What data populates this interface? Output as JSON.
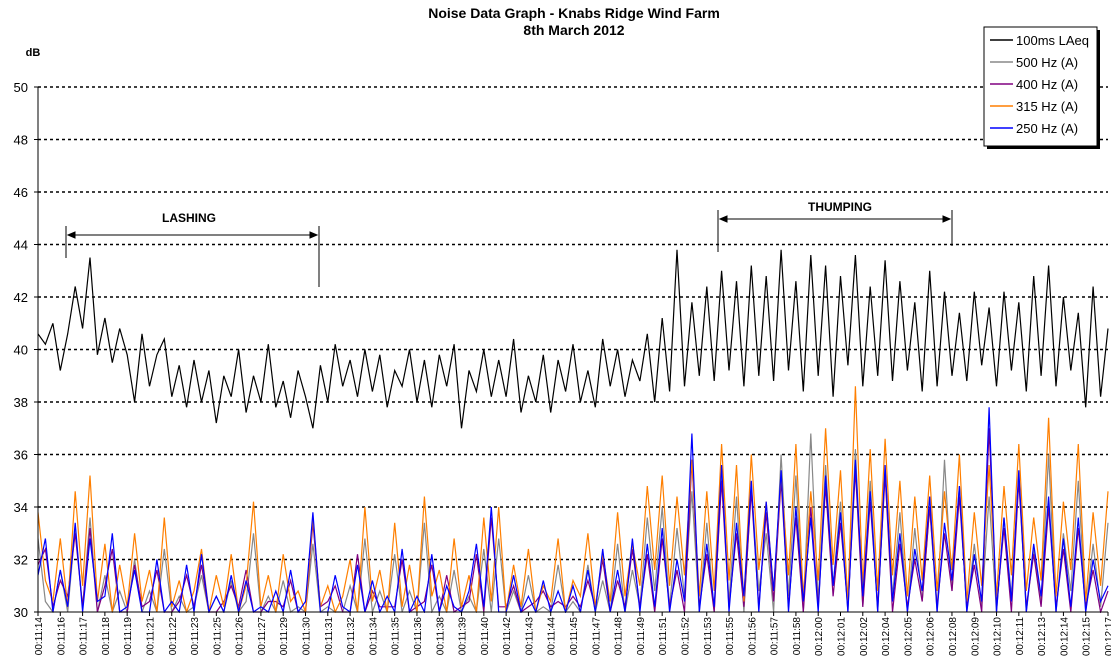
{
  "chart_data": {
    "type": "line",
    "title": "Noise Data Graph - Knabs Ridge Wind Farm",
    "subtitle": "8th March 2012",
    "y_label": "dB",
    "annotations": [
      {
        "text": "LASHING"
      },
      {
        "text": "THUMPING"
      }
    ],
    "categories": [
      "00:11:14",
      null,
      null,
      "00:11:16",
      null,
      null,
      "00:11:17",
      null,
      null,
      "00:11:18",
      null,
      null,
      "00:11:19",
      null,
      null,
      "00:11:21",
      null,
      null,
      "00:11:22",
      null,
      null,
      "00:11:23",
      null,
      null,
      "00:11:25",
      null,
      null,
      "00:11:26",
      null,
      null,
      "00:11:27",
      null,
      null,
      "00:11:29",
      null,
      null,
      "00:11:30",
      null,
      null,
      "00:11:31",
      null,
      null,
      "00:11:32",
      null,
      null,
      "00:11:34",
      null,
      null,
      "00:11:35",
      null,
      null,
      "00:11:36",
      null,
      null,
      "00:11:38",
      null,
      null,
      "00:11:39",
      null,
      null,
      "00:11:40",
      null,
      null,
      "00:11:42",
      null,
      null,
      "00:11:43",
      null,
      null,
      "00:11:44",
      null,
      null,
      "00:11:45",
      null,
      null,
      "00:11:47",
      null,
      null,
      "00:11:48",
      null,
      null,
      "00:11:49",
      null,
      null,
      "00:11:51",
      null,
      null,
      "00:11:52",
      null,
      null,
      "00:11:53",
      null,
      null,
      "00:11:55",
      null,
      null,
      "00:11:56",
      null,
      null,
      "00:11:57",
      null,
      null,
      "00:11:58",
      null,
      null,
      "00:12:00",
      null,
      null,
      "00:12:01",
      null,
      null,
      "00:12:02",
      null,
      null,
      "00:12:04",
      null,
      null,
      "00:12:05",
      null,
      null,
      "00:12:06",
      null,
      null,
      "00:12:08",
      null,
      null,
      "00:12:09",
      null,
      null,
      "00:12:10",
      null,
      null,
      "00:12:11",
      null,
      null,
      "00:12:13",
      null,
      null,
      "00:12:14",
      null,
      null,
      "00:12:15",
      null,
      null,
      "00:12:17"
    ],
    "series": [
      {
        "name": "100ms LAeq",
        "color": "#000000",
        "values": [
          40.6,
          40.2,
          41.0,
          39.2,
          40.6,
          42.4,
          40.8,
          43.5,
          39.8,
          41.2,
          39.5,
          40.8,
          39.8,
          38.0,
          40.6,
          38.6,
          39.8,
          40.4,
          38.2,
          39.4,
          37.8,
          39.6,
          38.0,
          39.2,
          37.2,
          39.0,
          38.2,
          40.0,
          37.6,
          39.0,
          38.0,
          40.2,
          37.8,
          38.8,
          37.4,
          39.2,
          38.2,
          37.0,
          39.4,
          38.0,
          40.2,
          38.6,
          39.6,
          38.2,
          40.0,
          38.4,
          39.8,
          37.8,
          39.2,
          38.6,
          40.0,
          38.0,
          39.6,
          37.8,
          39.8,
          38.6,
          40.2,
          37.0,
          39.2,
          38.4,
          40.0,
          38.2,
          39.6,
          38.2,
          40.4,
          37.6,
          39.0,
          38.0,
          39.8,
          37.6,
          39.6,
          38.4,
          40.2,
          38.0,
          39.2,
          37.8,
          40.4,
          38.6,
          40.0,
          38.2,
          39.6,
          38.8,
          40.6,
          38.0,
          41.2,
          38.4,
          43.8,
          38.6,
          41.8,
          39.0,
          42.4,
          38.8,
          43.0,
          39.2,
          42.6,
          38.6,
          43.2,
          39.0,
          42.8,
          38.8,
          43.8,
          39.2,
          42.6,
          38.4,
          43.6,
          39.0,
          43.2,
          38.2,
          42.8,
          39.4,
          43.6,
          38.6,
          42.4,
          39.0,
          43.4,
          38.8,
          42.6,
          39.2,
          41.8,
          38.4,
          43.0,
          38.6,
          42.2,
          39.0,
          41.4,
          38.8,
          42.2,
          39.4,
          41.6,
          38.6,
          42.2,
          39.2,
          41.8,
          38.4,
          42.8,
          39.0,
          43.2,
          38.6,
          42.0,
          39.2,
          41.4,
          37.8,
          42.4,
          38.2,
          40.8
        ]
      },
      {
        "name": "500 Hz (A)",
        "color": "#888888",
        "values": [
          32.8,
          30.4,
          30.0,
          31.6,
          30.0,
          33.2,
          30.2,
          33.6,
          30.0,
          31.4,
          30.0,
          30.8,
          30.0,
          32.0,
          30.0,
          30.8,
          30.0,
          32.4,
          30.0,
          30.6,
          30.0,
          30.2,
          31.4,
          30.0,
          30.6,
          30.0,
          31.2,
          30.0,
          30.4,
          33.0,
          30.0,
          30.6,
          30.0,
          31.2,
          30.0,
          30.2,
          30.0,
          32.6,
          30.0,
          30.2,
          30.0,
          30.0,
          31.0,
          30.0,
          32.8,
          30.0,
          30.8,
          30.0,
          32.2,
          30.0,
          30.8,
          30.0,
          33.4,
          30.0,
          30.6,
          30.0,
          31.6,
          30.0,
          30.6,
          30.0,
          32.4,
          30.0,
          32.8,
          30.0,
          30.8,
          30.0,
          31.4,
          30.0,
          30.2,
          30.0,
          31.8,
          30.0,
          30.4,
          30.0,
          31.8,
          30.0,
          31.2,
          30.0,
          32.6,
          30.0,
          31.6,
          30.2,
          33.6,
          30.8,
          34.0,
          30.2,
          33.2,
          30.6,
          34.6,
          30.0,
          33.4,
          30.0,
          35.2,
          30.4,
          34.4,
          30.0,
          34.8,
          30.8,
          33.0,
          30.0,
          36.0,
          30.6,
          35.2,
          30.0,
          36.8,
          30.4,
          35.6,
          31.0,
          34.2,
          30.0,
          36.2,
          30.2,
          35.0,
          30.0,
          35.4,
          30.6,
          33.8,
          30.0,
          33.2,
          30.4,
          34.0,
          30.0,
          35.8,
          30.8,
          34.8,
          30.0,
          32.6,
          30.2,
          34.4,
          30.0,
          33.6,
          30.6,
          35.2,
          30.0,
          32.4,
          30.4,
          36.0,
          30.0,
          33.0,
          30.8,
          35.0,
          30.0,
          32.6,
          30.2,
          33.4
        ]
      },
      {
        "name": "400 Hz (A)",
        "color": "#800080",
        "values": [
          31.8,
          32.4,
          30.2,
          31.2,
          30.6,
          33.0,
          30.2,
          33.2,
          30.0,
          31.0,
          32.4,
          30.0,
          30.0,
          31.8,
          30.2,
          30.4,
          31.6,
          30.0,
          30.0,
          30.4,
          31.4,
          30.2,
          31.8,
          30.0,
          30.0,
          30.4,
          31.0,
          30.2,
          31.6,
          30.0,
          30.0,
          30.4,
          30.4,
          30.2,
          31.2,
          30.0,
          30.0,
          33.4,
          30.2,
          30.4,
          31.0,
          30.0,
          30.0,
          32.2,
          30.0,
          30.8,
          30.2,
          30.2,
          30.2,
          32.0,
          30.0,
          30.2,
          30.4,
          31.8,
          30.0,
          31.4,
          30.0,
          30.2,
          30.4,
          32.2,
          30.0,
          33.6,
          30.2,
          30.2,
          31.0,
          30.0,
          30.2,
          30.4,
          30.8,
          30.2,
          30.4,
          30.2,
          30.6,
          30.2,
          31.2,
          30.2,
          32.0,
          30.0,
          31.2,
          30.2,
          32.4,
          30.2,
          32.2,
          30.0,
          32.8,
          30.2,
          31.6,
          30.0,
          35.8,
          30.2,
          32.2,
          30.0,
          35.0,
          30.2,
          33.0,
          30.2,
          34.6,
          30.2,
          33.8,
          30.4,
          35.0,
          30.2,
          33.6,
          30.0,
          34.0,
          30.2,
          34.8,
          30.6,
          33.4,
          30.2,
          35.4,
          30.2,
          34.2,
          30.2,
          35.2,
          30.0,
          32.6,
          30.2,
          32.0,
          30.4,
          34.0,
          30.2,
          33.0,
          30.8,
          34.4,
          30.2,
          31.8,
          30.0,
          37.0,
          30.2,
          33.2,
          30.0,
          35.0,
          30.2,
          32.2,
          30.2,
          34.0,
          30.2,
          32.4,
          30.0,
          33.2,
          30.2,
          31.6,
          30.0,
          30.8
        ]
      },
      {
        "name": "315 Hz (A)",
        "color": "#ff7f00",
        "values": [
          33.8,
          31.2,
          30.4,
          32.8,
          30.2,
          34.6,
          31.0,
          35.2,
          30.4,
          32.6,
          30.0,
          31.8,
          30.2,
          33.0,
          30.4,
          31.6,
          30.0,
          33.6,
          30.2,
          31.2,
          30.0,
          30.8,
          32.4,
          30.0,
          31.4,
          30.2,
          32.2,
          30.0,
          31.0,
          34.2,
          30.2,
          31.4,
          30.0,
          32.2,
          30.4,
          30.8,
          30.0,
          33.6,
          30.2,
          31.0,
          30.0,
          30.6,
          32.0,
          30.0,
          34.0,
          30.4,
          31.6,
          30.0,
          33.4,
          30.2,
          31.8,
          30.0,
          34.4,
          30.6,
          31.6,
          30.0,
          32.8,
          30.2,
          31.4,
          30.0,
          33.6,
          30.4,
          34.0,
          30.0,
          31.8,
          30.2,
          32.4,
          30.0,
          31.0,
          30.4,
          32.8,
          30.0,
          31.2,
          30.6,
          33.0,
          30.2,
          32.2,
          30.4,
          33.8,
          30.6,
          32.6,
          31.0,
          34.8,
          31.6,
          35.2,
          31.0,
          34.4,
          31.4,
          35.8,
          30.6,
          34.6,
          30.8,
          36.4,
          31.2,
          35.6,
          30.4,
          36.0,
          31.6,
          34.2,
          30.8,
          35.2,
          31.4,
          36.4,
          30.6,
          34.6,
          31.2,
          37.0,
          31.8,
          35.4,
          30.4,
          38.6,
          31.0,
          36.2,
          30.8,
          36.6,
          31.4,
          35.0,
          30.6,
          34.4,
          31.2,
          35.2,
          30.8,
          34.6,
          31.6,
          36.0,
          30.4,
          33.8,
          31.0,
          35.6,
          30.6,
          34.8,
          31.4,
          36.4,
          30.8,
          33.6,
          31.2,
          37.4,
          30.6,
          34.2,
          31.6,
          36.4,
          30.4,
          33.8,
          31.0,
          34.6
        ]
      },
      {
        "name": "250 Hz (A)",
        "color": "#0000ff",
        "values": [
          31.4,
          32.8,
          30.0,
          31.6,
          30.2,
          33.4,
          30.0,
          32.8,
          30.4,
          30.6,
          33.0,
          30.0,
          30.2,
          31.6,
          30.0,
          30.0,
          32.0,
          30.0,
          30.4,
          30.0,
          31.8,
          30.0,
          32.2,
          30.0,
          30.6,
          30.0,
          31.4,
          30.0,
          31.2,
          30.0,
          30.2,
          30.0,
          30.8,
          30.0,
          31.6,
          30.0,
          30.4,
          33.8,
          30.0,
          30.0,
          31.4,
          30.2,
          30.0,
          31.8,
          30.0,
          31.2,
          30.0,
          30.6,
          30.0,
          32.4,
          30.0,
          30.6,
          30.0,
          32.2,
          30.0,
          31.0,
          30.2,
          30.0,
          30.8,
          32.6,
          30.2,
          34.0,
          30.0,
          30.0,
          31.4,
          30.0,
          30.6,
          30.0,
          31.2,
          30.0,
          30.8,
          30.0,
          31.0,
          30.0,
          31.6,
          30.0,
          32.4,
          30.0,
          31.6,
          30.0,
          32.8,
          30.0,
          32.6,
          30.2,
          33.2,
          30.0,
          32.0,
          30.4,
          36.8,
          30.0,
          32.6,
          30.2,
          35.6,
          30.0,
          33.4,
          30.6,
          35.0,
          30.0,
          34.2,
          30.8,
          35.4,
          30.0,
          34.0,
          30.4,
          33.6,
          30.0,
          35.2,
          31.0,
          33.8,
          30.0,
          35.8,
          30.6,
          34.6,
          30.0,
          35.6,
          30.4,
          33.0,
          30.0,
          32.4,
          30.8,
          34.4,
          30.0,
          33.4,
          31.2,
          34.8,
          30.0,
          32.2,
          30.4,
          37.8,
          30.0,
          33.6,
          30.4,
          35.4,
          30.0,
          32.6,
          30.6,
          34.4,
          30.0,
          32.8,
          30.2,
          33.6,
          30.0,
          32.0,
          30.4,
          31.0
        ]
      }
    ],
    "ylim": [
      30,
      50
    ],
    "yticks": [
      30,
      32,
      34,
      36,
      38,
      40,
      42,
      44,
      46,
      48,
      50
    ],
    "grid": true,
    "legend": "top-right"
  }
}
